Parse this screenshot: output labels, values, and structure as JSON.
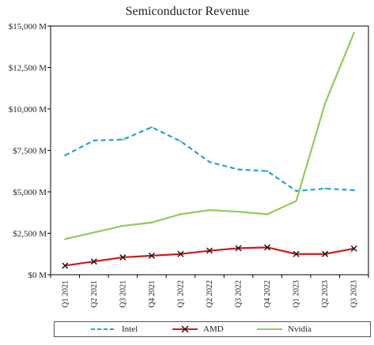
{
  "chart_data": {
    "type": "line",
    "title": "Semiconductor Revenue",
    "categories": [
      "Q1 2021",
      "Q2 2021",
      "Q3 2021",
      "Q4 2021",
      "Q1 2022",
      "Q2 2022",
      "Q3 2022",
      "Q4 2022",
      "Q1 2023",
      "Q2 2023",
      "Q3 2023"
    ],
    "ylim": [
      0,
      15000
    ],
    "yticks": [
      0,
      2500,
      5000,
      7500,
      10000,
      12500,
      15000
    ],
    "ytick_labels": [
      "$0 M",
      "$2,500 M",
      "$5,000 M",
      "$7,500 M",
      "$10,000 M",
      "$12,500 M",
      "$15,000 M"
    ],
    "grid": false,
    "legend_position": "bottom",
    "series": [
      {
        "name": "Intel",
        "color": "#1fa3d6",
        "style": "dashed",
        "marker": "none",
        "values": [
          7200,
          8100,
          8150,
          8900,
          8050,
          6800,
          6350,
          6250,
          5050,
          5200,
          5100
        ]
      },
      {
        "name": "AMD",
        "color": "#d11a1a",
        "style": "solid",
        "marker": "x",
        "values": [
          550,
          800,
          1050,
          1150,
          1250,
          1450,
          1600,
          1650,
          1250,
          1250,
          1580
        ]
      },
      {
        "name": "Nvidia",
        "color": "#8fcc5a",
        "style": "solid",
        "marker": "none",
        "values": [
          2150,
          2550,
          2950,
          3150,
          3650,
          3900,
          3800,
          3650,
          4450,
          10350,
          14600
        ]
      }
    ]
  }
}
